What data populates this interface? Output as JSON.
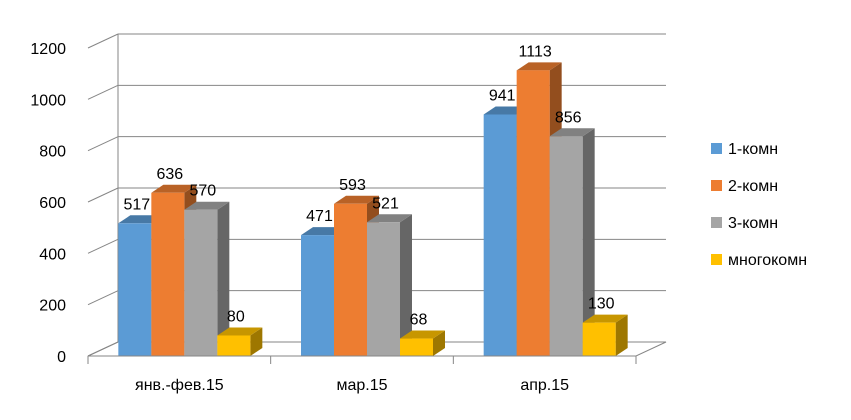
{
  "chart_data": {
    "type": "bar",
    "style": "3d-clustered-column",
    "categories": [
      "янв.-фев.15",
      "мар.15",
      "апр.15"
    ],
    "series": [
      {
        "name": "1-комн",
        "values": [
          517,
          471,
          941
        ],
        "color": "#5B9BD5"
      },
      {
        "name": "2-комн",
        "values": [
          636,
          593,
          1113
        ],
        "color": "#ED7D31"
      },
      {
        "name": "3-комн",
        "values": [
          570,
          521,
          856
        ],
        "color": "#A5A5A5"
      },
      {
        "name": "многокомн",
        "values": [
          80,
          68,
          130
        ],
        "color": "#FFC000"
      }
    ],
    "ylim": [
      0,
      1200
    ],
    "yticks": [
      "0",
      "200",
      "400",
      "600",
      "800",
      "1000",
      "1200"
    ],
    "grid": true,
    "legend_position": "right",
    "title": "",
    "xlabel": "",
    "ylabel": ""
  }
}
